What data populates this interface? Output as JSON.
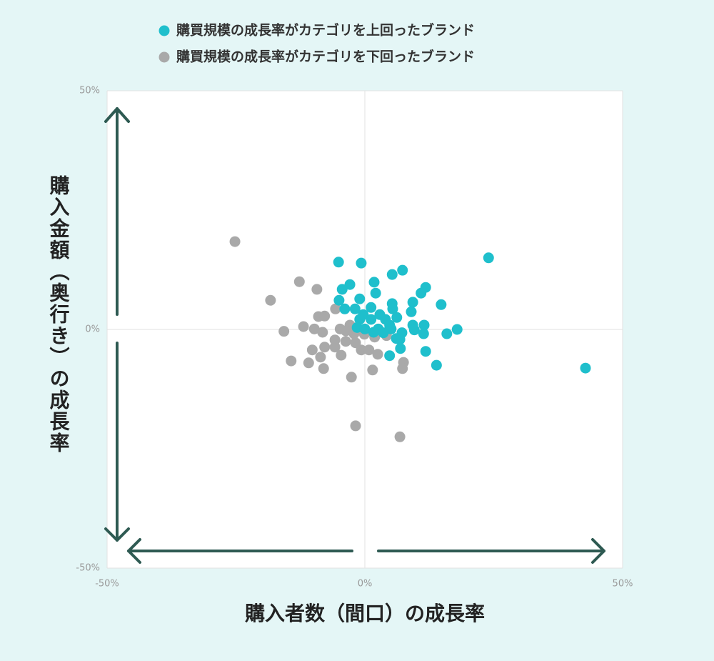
{
  "chart_data": {
    "type": "scatter",
    "xlabel": "購入者数（間口）の成長率",
    "ylabel": "購入金額（奥行き）の成長率",
    "xlim": [
      -50,
      50
    ],
    "ylim": [
      -50,
      50
    ],
    "xticks": [
      {
        "value": -50,
        "label": "-50%"
      },
      {
        "value": 0,
        "label": "0%"
      },
      {
        "value": 50,
        "label": "50%"
      }
    ],
    "yticks": [
      {
        "value": -50,
        "label": "-50%"
      },
      {
        "value": 0,
        "label": "0%"
      },
      {
        "value": 50,
        "label": "50%"
      }
    ],
    "series": [
      {
        "name": "購買規模の成長率がカテゴリを上回ったブランド",
        "color": "#1fbfcc",
        "x": [
          -5.1,
          -0.7,
          24.0,
          7.3,
          5.3,
          1.8,
          11.8,
          -2.9,
          -4.4,
          2.1,
          10.9,
          -5.0,
          -1.0,
          5.3,
          9.3,
          14.8,
          -3.9,
          1.2,
          -1.9,
          5.4,
          -0.3,
          2.9,
          9.0,
          6.2,
          -1.0,
          1.2,
          4.0,
          4.8,
          9.3,
          11.5,
          -1.5,
          0,
          2.6,
          5.1,
          9.6,
          17.9,
          1.7,
          3.6,
          7.2,
          11.4,
          15.9,
          6.1,
          6.8,
          6.9,
          11.8,
          4.8,
          13.9,
          42.8
        ],
        "y": [
          14.1,
          13.9,
          15.0,
          12.4,
          11.5,
          9.9,
          8.8,
          9.4,
          8.4,
          7.6,
          7.6,
          6.1,
          6.4,
          5.4,
          5.7,
          5.2,
          4.3,
          4.6,
          4.3,
          4.3,
          3.1,
          3.1,
          3.7,
          2.5,
          2.1,
          2.1,
          2.1,
          0.9,
          0.9,
          0.9,
          0.4,
          0.1,
          0.1,
          0.1,
          -0.1,
          0,
          -0.6,
          -0.7,
          -0.7,
          -0.9,
          -0.9,
          -1.9,
          -2.1,
          -4.0,
          -4.6,
          -5.5,
          -7.5,
          -8.1
        ]
      },
      {
        "name": "購買規模の成長率がカテゴリを下回ったブランド",
        "color": "#a9a9a9",
        "x": [
          -25.2,
          -12.7,
          -18.3,
          -9.3,
          -5.7,
          -9.0,
          -7.8,
          -15.7,
          -11.9,
          -9.8,
          -8.2,
          -4.8,
          -2.9,
          -3.7,
          -2.1,
          -0.1,
          1.9,
          4.2,
          -5.8,
          -3.7,
          -1.8,
          -10.2,
          -7.8,
          -5.8,
          -0.7,
          0.8,
          2.5,
          -8.6,
          -4.6,
          -14.3,
          -10.9,
          -8.0,
          1.5,
          7.5,
          7.3,
          -2.6,
          -1.8,
          6.8
        ],
        "y": [
          18.4,
          10.0,
          6.1,
          8.4,
          4.3,
          2.7,
          2.8,
          -0.4,
          0.6,
          0.1,
          -0.6,
          0.1,
          0.9,
          -0.3,
          -0.9,
          -1.0,
          -1.6,
          -1.3,
          -2.2,
          -2.5,
          -2.8,
          -4.3,
          -3.7,
          -3.7,
          -4.3,
          -4.3,
          -5.2,
          -5.8,
          -5.4,
          -6.6,
          -7.0,
          -8.2,
          -8.5,
          -6.9,
          -8.2,
          -10.0,
          -20.2,
          -22.5
        ]
      }
    ]
  }
}
